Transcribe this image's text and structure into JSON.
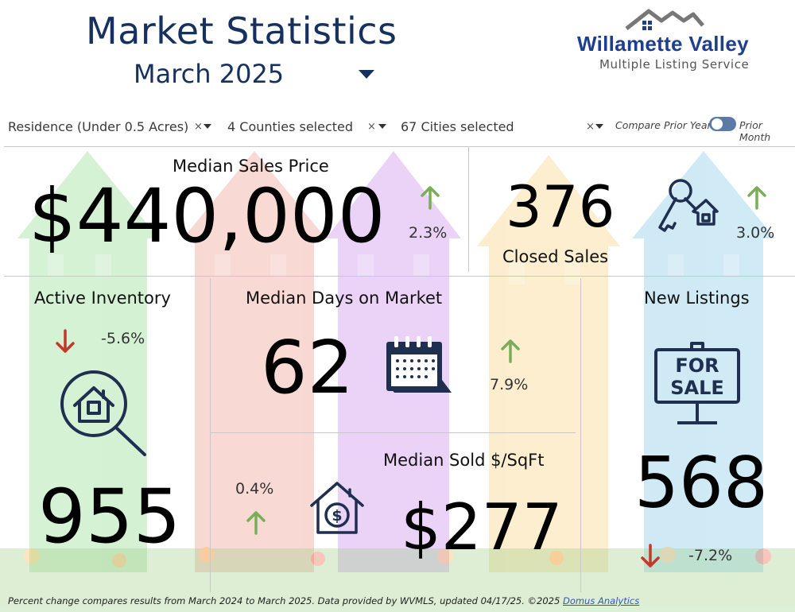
{
  "header": {
    "title": "Market Statistics",
    "period": "March 2025"
  },
  "logo": {
    "name": "Willamette Valley",
    "subtitle": "Multiple Listing Service"
  },
  "filters": [
    {
      "label": "Residence (Under 0.5 Acres)",
      "clear": "×"
    },
    {
      "label": "4 Counties selected",
      "clear": "×"
    },
    {
      "label": "67 Cities selected",
      "clear": "×"
    }
  ],
  "compare": {
    "left": "Compare Prior Year",
    "right": "Prior Month",
    "selected": "Prior Month"
  },
  "metrics": {
    "median_sales_price": {
      "label": "Median Sales Price",
      "value": "$440,000",
      "change": "2.3%",
      "direction": "up"
    },
    "closed_sales": {
      "label": "Closed Sales",
      "value": "376",
      "change": "3.0%",
      "direction": "up"
    },
    "active_inventory": {
      "label": "Active Inventory",
      "value": "955",
      "change": "-5.6%",
      "direction": "down"
    },
    "median_days_on_market": {
      "label": "Median Days on Market",
      "value": "62",
      "change": "7.9%",
      "direction": "up"
    },
    "new_listings": {
      "label": "New Listings",
      "value": "568",
      "change": "-7.2%",
      "direction": "down",
      "sign_text": [
        "FOR",
        "SALE"
      ]
    },
    "median_sold_per_sqft": {
      "label": "Median Sold $/SqFt",
      "value": "$277",
      "change": "0.4%",
      "direction": "up"
    }
  },
  "colors": {
    "up": "#7aad5a",
    "down": "#c0392b",
    "title": "#16305f",
    "icon": "#1f2f4f"
  },
  "footer": {
    "text": "Percent change compares results from March 2024 to March 2025.  Data provided by WVMLS, updated 04/17/25.  ©2025 ",
    "link": "Domus Analytics"
  }
}
